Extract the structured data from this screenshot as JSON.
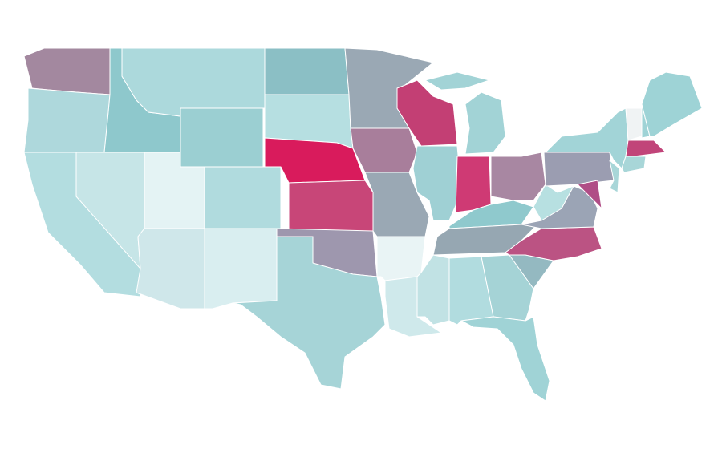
{
  "map": {
    "regions": [
      {
        "color": "#a3889f"
      },
      {
        "color": "#aed8dc"
      },
      {
        "color": "#b3dde0"
      },
      {
        "color": "#c6e5e7"
      },
      {
        "color": "#8ec8cc"
      },
      {
        "color": "#acd9dc"
      },
      {
        "color": "#9bcfd2"
      },
      {
        "color": "#e4f3f4"
      },
      {
        "color": "#b0dbde"
      },
      {
        "color": "#cfe7ea"
      },
      {
        "color": "#d9eef0"
      },
      {
        "color": "#8bbfc5"
      },
      {
        "color": "#b6dfe1"
      },
      {
        "color": "#d91b5c"
      },
      {
        "color": "#c84678"
      },
      {
        "color": "#9e97ae"
      },
      {
        "color": "#a6d4d7"
      },
      {
        "color": "#9aa8b4"
      },
      {
        "color": "#a87e9b"
      },
      {
        "color": "#9aa8b4"
      },
      {
        "color": "#e9f4f5"
      },
      {
        "color": "#cfe9eb"
      },
      {
        "color": "#c33f74"
      },
      {
        "color": "#9fd0d4"
      },
      {
        "color": "#c1e2e4"
      },
      {
        "color": "#a2d3d6"
      },
      {
        "color": "#cf3a74"
      },
      {
        "color": "#a887a2"
      },
      {
        "color": "#8fc9cd"
      },
      {
        "color": "#96a7b2"
      },
      {
        "color": "#b1dcdf"
      },
      {
        "color": "#a5d3d6"
      },
      {
        "color": "#a0d3d6"
      },
      {
        "color": "#94b9c1"
      },
      {
        "color": "#bb5383"
      },
      {
        "color": "#9ba4b5"
      },
      {
        "color": "#b7e0e1"
      },
      {
        "color": "#9b9db1"
      },
      {
        "color": "#a2d4d7"
      },
      {
        "color": "#a8d6d8"
      },
      {
        "color": "#b04d86"
      },
      {
        "color": "#f0f3f4"
      },
      {
        "color": "#9fd3d6"
      },
      {
        "color": "#9ed3d6"
      },
      {
        "color": "#c14479"
      },
      {
        "color": "#a8d6d8"
      }
    ]
  }
}
